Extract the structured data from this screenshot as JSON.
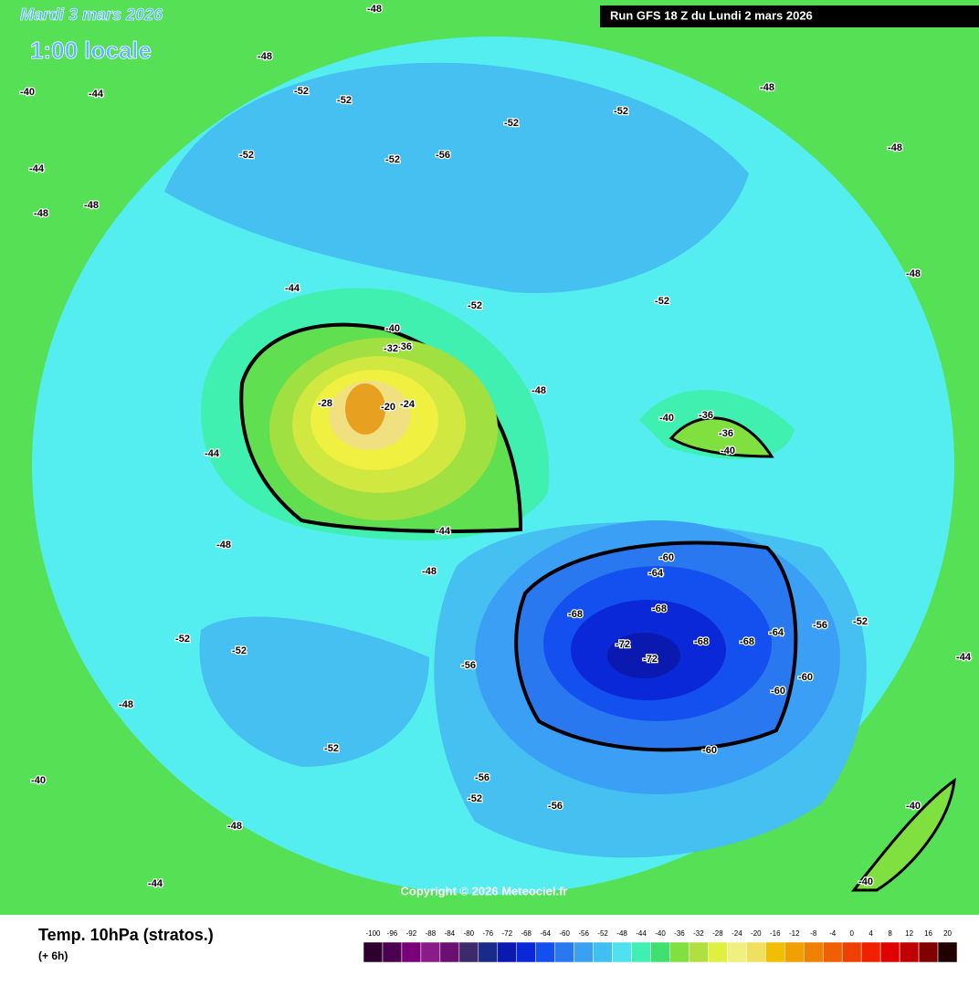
{
  "header": {
    "date": "Mardi 3 mars 2026",
    "time": "1:00 locale",
    "run": "Run GFS 18 Z du Lundi 2 mars 2026",
    "copyright": "Copyright © 2026 Meteociel.fr"
  },
  "footer": {
    "title": "Temp. 10hPa (stratos.)",
    "lead": "(+ 6h)"
  },
  "map_labels": [
    -48,
    -48,
    -40,
    -44,
    -44,
    -48,
    -48,
    -52,
    -52,
    -52,
    -56,
    -52,
    -52,
    -52,
    -52,
    -52,
    -52,
    -48,
    -48,
    -48,
    -48,
    -44,
    -40,
    -36,
    -32,
    -28,
    -24,
    -20,
    -44,
    -44,
    -48,
    -48,
    -40,
    -36,
    -36,
    -40,
    -60,
    -64,
    -68,
    -68,
    -72,
    -72,
    -68,
    -68,
    -64,
    -60,
    -60,
    -56,
    -56,
    -56,
    -56,
    -60,
    -52,
    -52,
    -52,
    -52,
    -48,
    -48,
    -44,
    -44,
    -40,
    -40,
    -40
  ],
  "legend": {
    "ticks": [
      -100,
      -96,
      -92,
      -88,
      -84,
      -80,
      -76,
      -72,
      -68,
      -64,
      -60,
      -56,
      -52,
      -48,
      -44,
      -40,
      -36,
      -32,
      -28,
      -24,
      -20,
      -16,
      -12,
      -8,
      -4,
      0,
      4,
      8,
      12,
      16,
      20
    ],
    "colors": [
      "#2d0030",
      "#4b0050",
      "#7a007a",
      "#8b1a8b",
      "#6a1070",
      "#3c2a6a",
      "#1a2a8a",
      "#0a1ab0",
      "#0a28d8",
      "#1450f0",
      "#2a78f0",
      "#3aa0f0",
      "#40c0f0",
      "#50e0f0",
      "#40f0b0",
      "#40e070",
      "#80e040",
      "#b0e040",
      "#e0f040",
      "#f0f080",
      "#f0e060",
      "#f0c000",
      "#f0a000",
      "#f08000",
      "#f06000",
      "#f04000",
      "#f02000",
      "#e00000",
      "#c00000",
      "#800000",
      "#200000"
    ]
  }
}
